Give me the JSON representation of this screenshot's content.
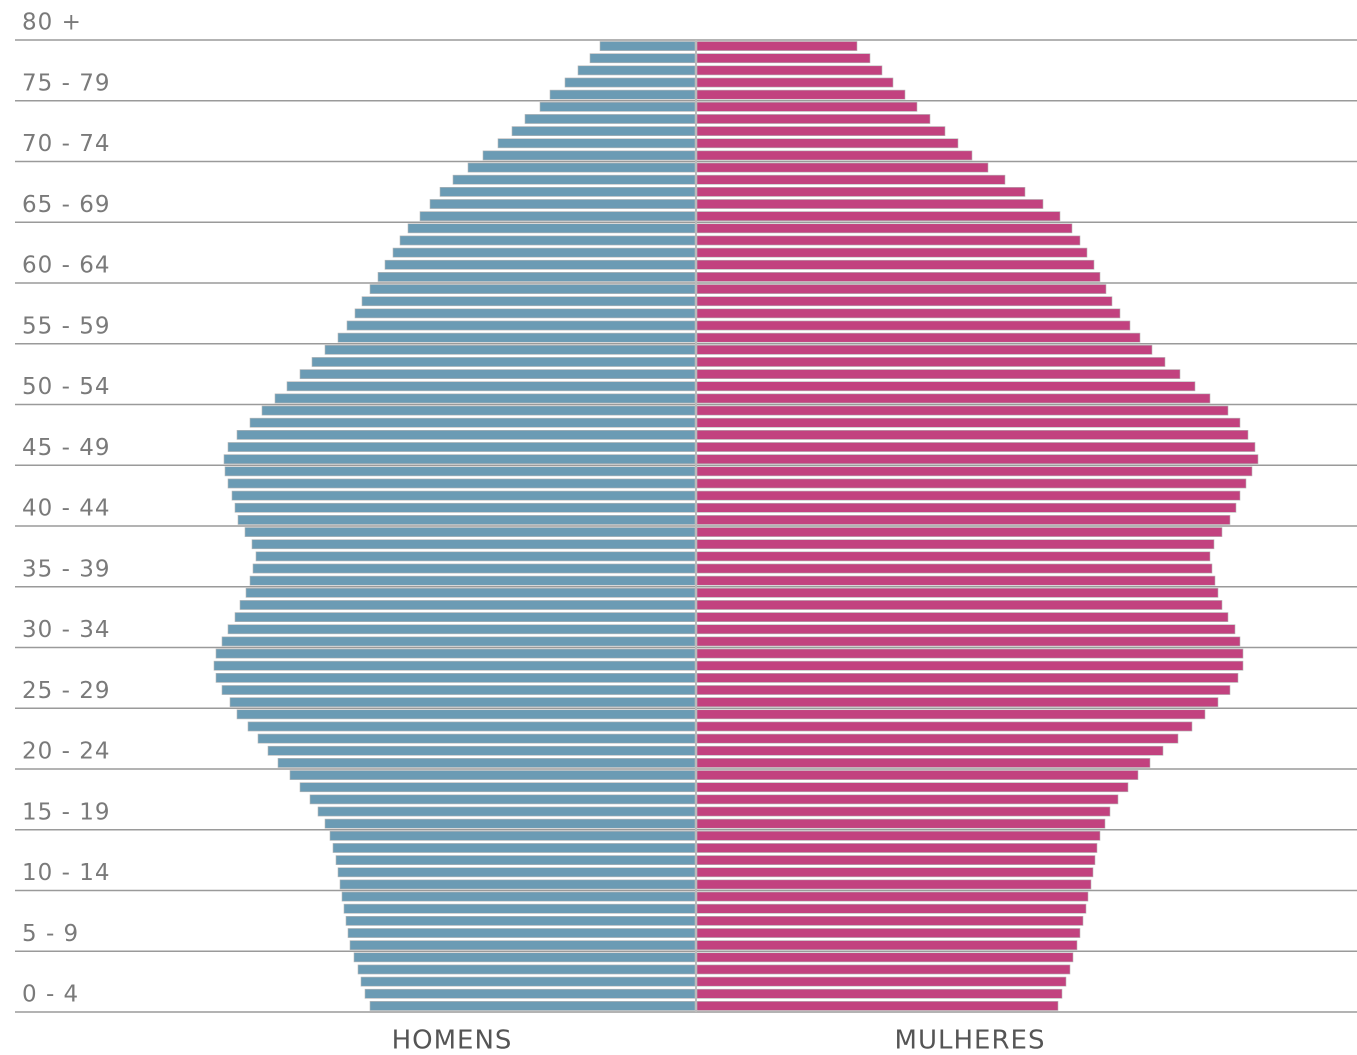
{
  "chart_data": {
    "type": "pyramid",
    "age_groups": [
      "0 - 4",
      "5 - 9",
      "10 - 14",
      "15 - 19",
      "20 - 24",
      "25 - 29",
      "30 - 34",
      "35 - 39",
      "40 - 44",
      "45 - 49",
      "50 - 54",
      "55 - 59",
      "60 - 64",
      "65 - 69",
      "70 - 74",
      "75 - 79",
      "80 +"
    ],
    "xlim": [
      0,
      700
    ],
    "series": [
      {
        "name": "HOMENS",
        "color": "#6b9bb4",
        "values": [
          325,
          330,
          334,
          337,
          341,
          345,
          347,
          349,
          351,
          353,
          355,
          357,
          359,
          362,
          365,
          370,
          377,
          385,
          395,
          405,
          417,
          427,
          437,
          447,
          458,
          465,
          473,
          479,
          481,
          479,
          473,
          467,
          460,
          455,
          449,
          445,
          442,
          439,
          443,
          450,
          457,
          460,
          463,
          467,
          470,
          471,
          467,
          458,
          445,
          433,
          420,
          408,
          395,
          383,
          370,
          357,
          348,
          340,
          333,
          325,
          317,
          310,
          302,
          295,
          287,
          275,
          265,
          255,
          242,
          227,
          212,
          197,
          183,
          170,
          155,
          145,
          130,
          117,
          105,
          95
        ]
      },
      {
        "name": "MULHERES",
        "color": "#c2427f",
        "values": [
          361,
          365,
          369,
          373,
          376,
          380,
          383,
          386,
          389,
          391,
          394,
          396,
          398,
          400,
          403,
          408,
          413,
          421,
          431,
          441,
          453,
          466,
          481,
          495,
          508,
          521,
          533,
          541,
          546,
          546,
          543,
          538,
          531,
          525,
          521,
          518,
          515,
          513,
          517,
          525,
          533,
          539,
          543,
          549,
          555,
          561,
          558,
          551,
          543,
          531,
          513,
          498,
          483,
          468,
          455,
          443,
          433,
          423,
          415,
          409,
          403,
          397,
          390,
          383,
          375,
          363,
          346,
          328,
          308,
          291,
          275,
          261,
          248,
          233,
          220,
          208,
          196,
          185,
          173,
          160
        ]
      }
    ]
  }
}
